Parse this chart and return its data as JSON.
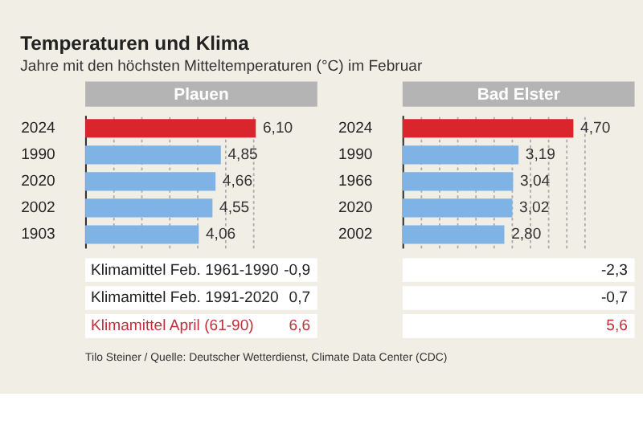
{
  "chart_data": [
    {
      "type": "bar",
      "orientation": "horizontal",
      "title": "Temperaturen und Klima",
      "subtitle": "Jahre mit den höchsten Mitteltemperaturen (°C) im Februar",
      "xlabel": "Plauen",
      "categories": [
        "2024",
        "1990",
        "2020",
        "2002",
        "1903"
      ],
      "values": [
        6.1,
        4.85,
        4.66,
        4.55,
        4.06
      ],
      "colors": [
        "#d9252b",
        "#7fb2e5",
        "#7fb2e5",
        "#7fb2e5",
        "#7fb2e5"
      ],
      "value_labels": [
        "6,10",
        "4,85",
        "4,66",
        "4,55",
        "4,06"
      ],
      "grid": "x",
      "tick_labels": "y",
      "annotations": [
        "Klimamittel Feb. 1961-1990",
        "-0,9",
        "Klimamittel Feb. 1991-2020",
        "0,7",
        "Klimamittel April (61-90)",
        "6,6",
        "Tilo Steiner / Quelle: Deutscher Wetterdienst, Climate Data Center (CDC)"
      ]
    },
    {
      "type": "bar",
      "orientation": "horizontal",
      "xlabel": "Bad Elster",
      "categories": [
        "2024",
        "1990",
        "1966",
        "2020",
        "2002"
      ],
      "values": [
        4.7,
        3.19,
        3.04,
        3.02,
        2.8
      ],
      "colors": [
        "#d9252b",
        "#7fb2e5",
        "#7fb2e5",
        "#7fb2e5",
        "#7fb2e5"
      ],
      "value_labels": [
        "4,70",
        "3,19",
        "3,04",
        "3,02",
        "2,80"
      ],
      "grid": "x",
      "tick_labels": "y",
      "annotations": [
        "-2,3",
        "-0,7",
        "5,6"
      ]
    }
  ]
}
